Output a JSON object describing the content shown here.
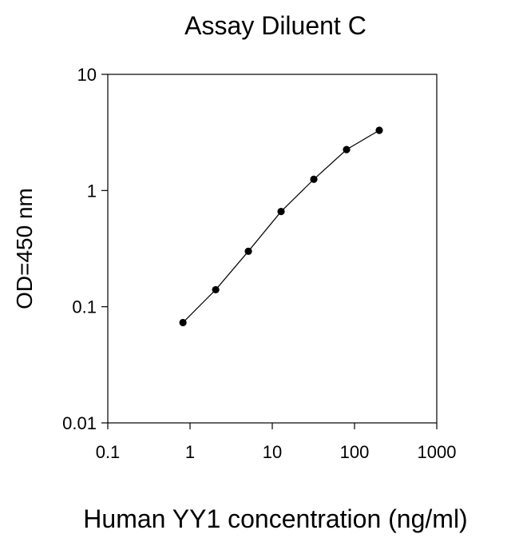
{
  "chart_data": {
    "type": "line",
    "title": "Assay Diluent C",
    "xlabel": "Human YY1 concentration (ng/ml)",
    "ylabel": "OD=450 nm",
    "xscale": "log",
    "yscale": "log",
    "xlim": [
      0.1,
      1000
    ],
    "ylim": [
      0.01,
      10
    ],
    "xticks": [
      "0.1",
      "1",
      "10",
      "100",
      "1000"
    ],
    "yticks": [
      "0.01",
      "0.1",
      "1",
      "10"
    ],
    "grid": false,
    "marker": "filled-circle",
    "line_color": "#000000",
    "series": [
      {
        "x": [
          0.82,
          2.05,
          5.12,
          12.8,
          32,
          80,
          200
        ],
        "y": [
          0.073,
          0.14,
          0.3,
          0.66,
          1.25,
          2.25,
          3.3
        ]
      }
    ]
  }
}
